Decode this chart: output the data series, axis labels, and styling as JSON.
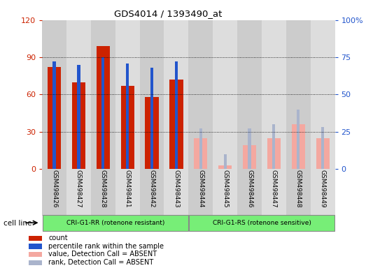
{
  "title": "GDS4014 / 1393490_at",
  "samples": [
    "GSM498426",
    "GSM498427",
    "GSM498428",
    "GSM498441",
    "GSM498442",
    "GSM498443",
    "GSM498444",
    "GSM498445",
    "GSM498446",
    "GSM498447",
    "GSM498448",
    "GSM498449"
  ],
  "group1_size": 6,
  "group2_size": 6,
  "group1_label": "CRI-G1-RR (rotenone resistant)",
  "group2_label": "CRI-G1-RS (rotenone sensitive)",
  "cell_line_label": "cell line",
  "count_values": [
    82,
    70,
    99,
    67,
    58,
    72,
    null,
    null,
    null,
    null,
    null,
    null
  ],
  "rank_values": [
    72,
    70,
    75,
    71,
    68,
    72,
    null,
    null,
    null,
    null,
    null,
    null
  ],
  "absent_value": [
    null,
    null,
    null,
    null,
    null,
    null,
    25,
    3,
    19,
    25,
    36,
    25
  ],
  "absent_rank": [
    null,
    null,
    null,
    null,
    null,
    null,
    27,
    10,
    27,
    30,
    40,
    28
  ],
  "left_ylim": [
    0,
    120
  ],
  "left_yticks": [
    0,
    30,
    60,
    90,
    120
  ],
  "right_yticks": [
    0,
    25,
    50,
    75,
    100
  ],
  "right_yticklabels": [
    "0",
    "25",
    "50",
    "75",
    "100%"
  ],
  "color_count": "#cc2200",
  "color_rank": "#2255cc",
  "color_absent_value": "#f4a8a0",
  "color_absent_rank": "#aab4cc",
  "color_group1_bg": "#77ee77",
  "color_group2_bg": "#77ee77",
  "color_tick_left": "#cc2200",
  "color_tick_right": "#2255cc",
  "legend_labels": [
    "count",
    "percentile rank within the sample",
    "value, Detection Call = ABSENT",
    "rank, Detection Call = ABSENT"
  ],
  "legend_colors": [
    "#cc2200",
    "#2255cc",
    "#f4a8a0",
    "#aab4cc"
  ]
}
